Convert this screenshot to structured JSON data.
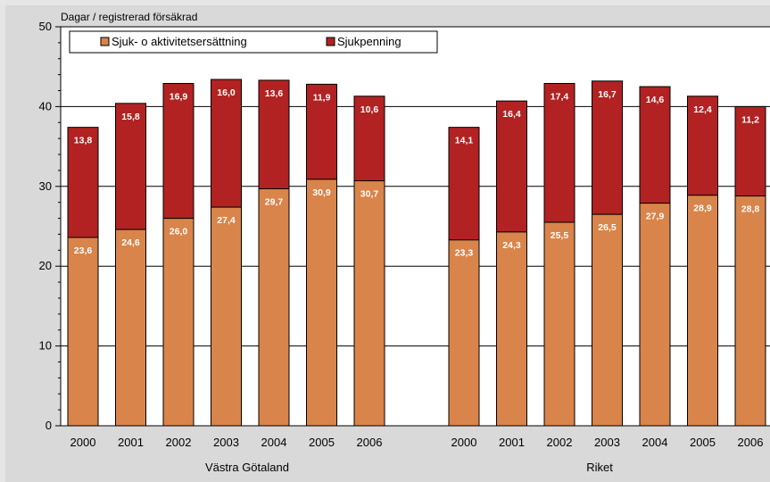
{
  "chart_data": {
    "type": "bar",
    "stacked": true,
    "ylabel": "Dagar / registrerad försäkrad",
    "ylim": [
      0,
      50
    ],
    "yticks": [
      0,
      10,
      20,
      30,
      40,
      50
    ],
    "grid": true,
    "legend_position": "top-left",
    "groups": [
      {
        "label": "Västra Götaland",
        "categories": [
          "2000",
          "2001",
          "2002",
          "2003",
          "2004",
          "2005",
          "2006"
        ]
      },
      {
        "label": "Riket",
        "categories": [
          "2000",
          "2001",
          "2002",
          "2003",
          "2004",
          "2005",
          "2006"
        ]
      }
    ],
    "series": [
      {
        "name": "Sjuk- o aktivitetsersättning",
        "color": "#d9844a",
        "values": [
          [
            23.6,
            24.6,
            26.0,
            27.4,
            29.7,
            30.9,
            30.7
          ],
          [
            23.3,
            24.3,
            25.5,
            26.5,
            27.9,
            28.9,
            28.8
          ]
        ],
        "labels": [
          [
            "23,6",
            "24,6",
            "26,0",
            "27,4",
            "29,7",
            "30,9",
            "30,7"
          ],
          [
            "23,3",
            "24,3",
            "25,5",
            "26,5",
            "27,9",
            "28,9",
            "28,8"
          ]
        ]
      },
      {
        "name": "Sjukpenning",
        "color": "#b22222",
        "values": [
          [
            13.8,
            15.8,
            16.9,
            16.0,
            13.6,
            11.9,
            10.6
          ],
          [
            14.1,
            16.4,
            17.4,
            16.7,
            14.6,
            12.4,
            11.2
          ]
        ],
        "labels": [
          [
            "13,8",
            "15,8",
            "16,9",
            "16,0",
            "13,6",
            "11,9",
            "10,6"
          ],
          [
            "14,1",
            "16,4",
            "17,4",
            "16,7",
            "14,6",
            "12,4",
            "11,2"
          ]
        ]
      }
    ]
  }
}
